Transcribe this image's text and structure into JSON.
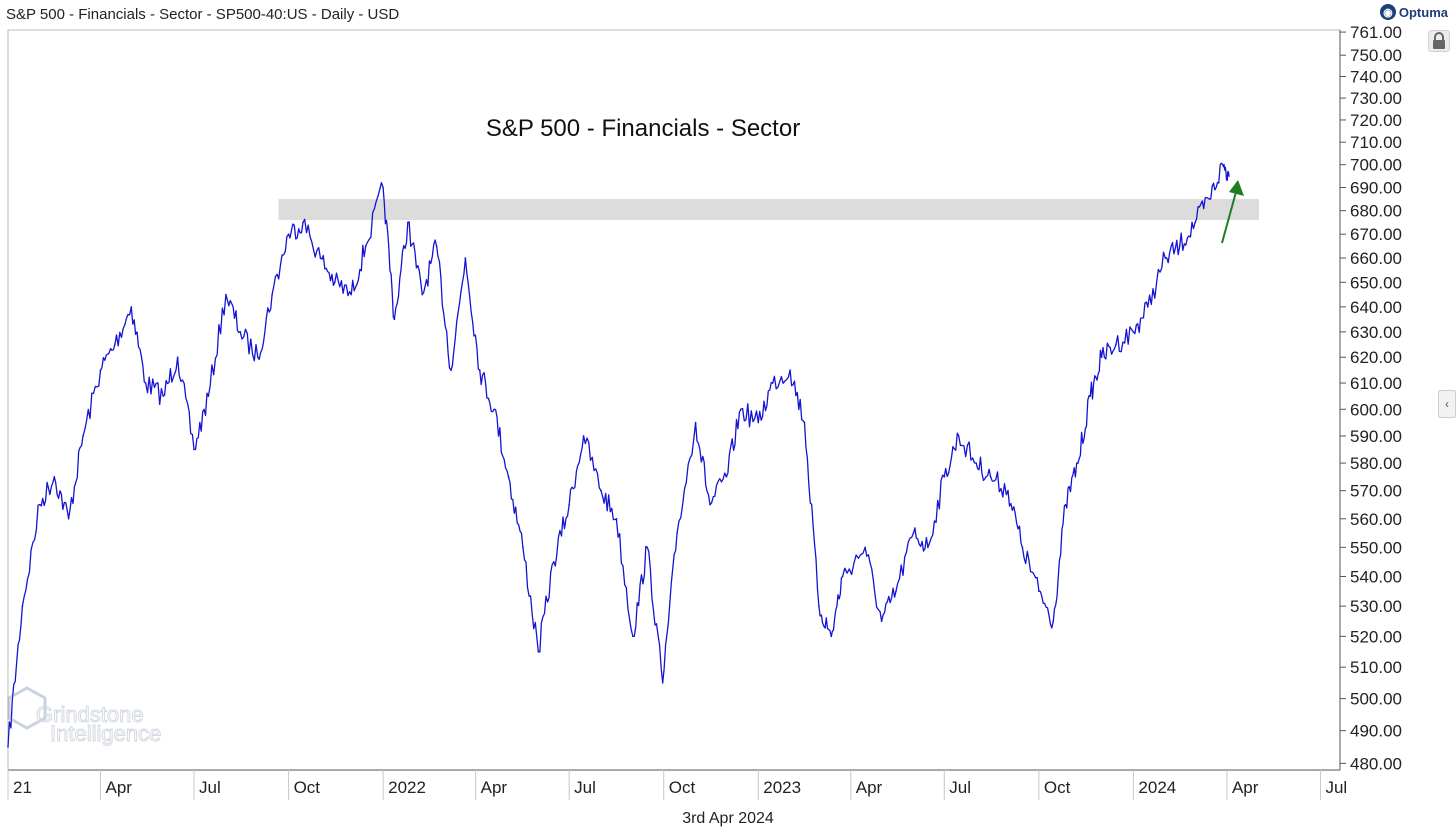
{
  "header": {
    "title": "S&P 500 - Financials - Sector - SP500-40:US - Daily - USD"
  },
  "brand": {
    "name": "Optuma",
    "logo_icon": "optuma-logo-icon"
  },
  "watermark": {
    "line1": "Grindstone",
    "line2": "Intelligence"
  },
  "footer": {
    "date": "3rd Apr 2024"
  },
  "colors": {
    "price_line": "#1414d2",
    "resistance_band": "#dcdcdc",
    "arrow": "#1f7f1f",
    "axis": "#555555"
  },
  "chart_data": {
    "type": "line",
    "title": "S&P 500 - Financials - Sector",
    "x_axis_ticks": [
      "21",
      "Apr",
      "Jul",
      "Oct",
      "2022",
      "Apr",
      "Jul",
      "Oct",
      "2023",
      "Apr",
      "Jul",
      "Oct",
      "2024",
      "Apr",
      "Jul"
    ],
    "y_axis_ticks": [
      "761.00",
      "750.00",
      "740.00",
      "730.00",
      "720.00",
      "710.00",
      "700.00",
      "690.00",
      "680.00",
      "670.00",
      "660.00",
      "650.00",
      "640.00",
      "630.00",
      "620.00",
      "610.00",
      "600.00",
      "590.00",
      "580.00",
      "570.00",
      "560.00",
      "550.00",
      "540.00",
      "530.00",
      "520.00",
      "510.00",
      "500.00",
      "490.00",
      "480.00"
    ],
    "ylim": [
      478,
      762
    ],
    "y_scale": "log",
    "grid": false,
    "series": [
      {
        "x": [
          "2021-01-01",
          "2021-01-15",
          "2021-02-01",
          "2021-02-15",
          "2021-03-01",
          "2021-03-15",
          "2021-04-01",
          "2021-04-15",
          "2021-05-01",
          "2021-05-15",
          "2021-06-01",
          "2021-06-15",
          "2021-07-01",
          "2021-07-15",
          "2021-08-01",
          "2021-08-15",
          "2021-09-01",
          "2021-09-15",
          "2021-10-01",
          "2021-10-15",
          "2021-11-01",
          "2021-11-15",
          "2021-12-01",
          "2021-12-15",
          "2022-01-01",
          "2022-01-12",
          "2022-01-25",
          "2022-02-08",
          "2022-02-22",
          "2022-03-08",
          "2022-03-22",
          "2022-04-05",
          "2022-04-19",
          "2022-05-03",
          "2022-05-17",
          "2022-06-01",
          "2022-06-16",
          "2022-07-01",
          "2022-07-15",
          "2022-08-01",
          "2022-08-16",
          "2022-09-01",
          "2022-09-15",
          "2022-09-30",
          "2022-10-14",
          "2022-11-01",
          "2022-11-15",
          "2022-12-01",
          "2022-12-15",
          "2023-01-01",
          "2023-01-15",
          "2023-02-01",
          "2023-02-15",
          "2023-03-01",
          "2023-03-13",
          "2023-03-24",
          "2023-04-15",
          "2023-05-01",
          "2023-05-15",
          "2023-06-01",
          "2023-06-15",
          "2023-07-01",
          "2023-07-15",
          "2023-08-01",
          "2023-08-15",
          "2023-09-01",
          "2023-09-15",
          "2023-10-01",
          "2023-10-15",
          "2023-10-27",
          "2023-11-08",
          "2023-11-20",
          "2023-12-01",
          "2023-12-15",
          "2024-01-01",
          "2024-01-15",
          "2024-02-01",
          "2024-02-15",
          "2024-03-01",
          "2024-03-15",
          "2024-03-28",
          "2024-04-03"
        ],
        "y": [
          485,
          530,
          565,
          575,
          560,
          590,
          615,
          625,
          640,
          610,
          605,
          620,
          585,
          605,
          645,
          630,
          620,
          645,
          670,
          675,
          660,
          650,
          645,
          665,
          690,
          635,
          675,
          645,
          665,
          615,
          660,
          615,
          600,
          575,
          550,
          515,
          545,
          565,
          590,
          570,
          560,
          520,
          550,
          505,
          555,
          595,
          565,
          575,
          600,
          595,
          610,
          615,
          595,
          530,
          520,
          540,
          550,
          525,
          535,
          555,
          550,
          575,
          590,
          580,
          575,
          570,
          550,
          535,
          525,
          565,
          580,
          605,
          620,
          625,
          630,
          640,
          660,
          665,
          675,
          685,
          700,
          695
        ]
      }
    ],
    "annotations": [
      {
        "type": "band",
        "x_start": "2021-10-01",
        "x_end": "2024-04-03",
        "y_low": 676,
        "y_high": 685
      },
      {
        "type": "arrow",
        "direction": "up"
      }
    ]
  }
}
